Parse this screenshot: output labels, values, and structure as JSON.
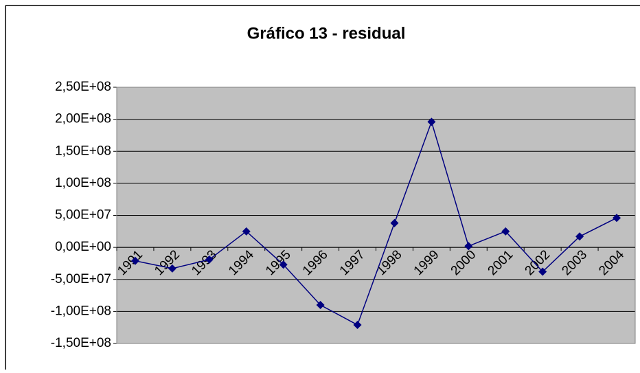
{
  "chart_data": {
    "type": "line",
    "title": "Gráfico 13 - residual",
    "categories": [
      "1991",
      "1992",
      "1993",
      "1994",
      "1995",
      "1996",
      "1997",
      "1998",
      "1999",
      "2000",
      "2001",
      "2002",
      "2003",
      "2004"
    ],
    "series": [
      {
        "color": "#000080",
        "values": [
          -21000000,
          -33000000,
          -19000000,
          25000000,
          -27000000,
          -90000000,
          -121000000,
          38000000,
          196000000,
          2000000,
          25000000,
          -38000000,
          17000000,
          46000000
        ]
      }
    ],
    "ylim": [
      -150000000,
      250000000
    ],
    "yticks": [
      {
        "value": -150000000,
        "label": "-1,50E+08"
      },
      {
        "value": -100000000,
        "label": "-1,00E+08"
      },
      {
        "value": -50000000,
        "label": "-5,00E+07"
      },
      {
        "value": 0,
        "label": "0,00E+00"
      },
      {
        "value": 50000000,
        "label": "5,00E+07"
      },
      {
        "value": 100000000,
        "label": "1,00E+08"
      },
      {
        "value": 150000000,
        "label": "1,50E+08"
      },
      {
        "value": 200000000,
        "label": "2,00E+08"
      },
      {
        "value": 250000000,
        "label": "2,50E+08"
      }
    ],
    "grid": true,
    "plot_background": "#c0c0c0"
  }
}
